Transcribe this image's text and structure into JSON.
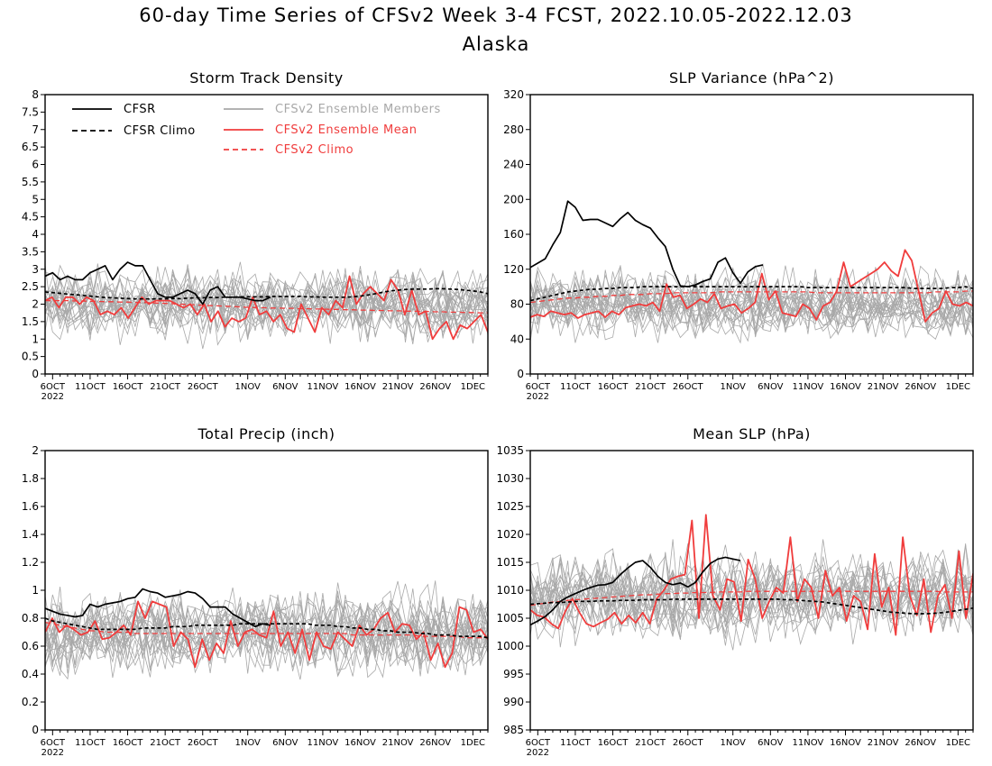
{
  "title": "60-day Time Series of CFSv2 Week 3-4 FCST, 2022.10.05-2022.12.03",
  "subtitle": "Alaska",
  "colors": {
    "cfsr": "#000000",
    "cfsr_climo": "#000000",
    "members": "#a8a8a8",
    "ens_mean": "#f03c3c",
    "cfsv2_climo": "#f03c3c"
  },
  "legend": {
    "cfsr": "CFSR",
    "cfsr_climo": "CFSR Climo",
    "members": "CFSv2 Ensemble Members",
    "ens_mean": "CFSv2 Ensemble Mean",
    "cfsv2_climo": "CFSv2 Climo"
  },
  "x_ticks": [
    "6OCT",
    "11OCT",
    "16OCT",
    "21OCT",
    "26OCT",
    "1NOV",
    "6NOV",
    "11NOV",
    "16NOV",
    "21NOV",
    "26NOV",
    "1DEC"
  ],
  "x_tick_days": [
    1,
    6,
    11,
    16,
    21,
    27,
    32,
    37,
    42,
    47,
    52,
    57
  ],
  "x_year": "2022",
  "chart_data": [
    {
      "type": "line",
      "title": "Storm Track Density",
      "ylim": [
        0,
        8
      ],
      "yticks": [
        "0",
        "0.5",
        "1",
        "1.5",
        "2",
        "2.5",
        "3",
        "3.5",
        "4",
        "4.5",
        "5",
        "5.5",
        "6",
        "6.5",
        "7",
        "7.5",
        "8"
      ],
      "legend_shown": true,
      "grid": false,
      "cfsr": [
        2.8,
        2.9,
        2.7,
        2.8,
        2.7,
        2.7,
        2.9,
        3.0,
        3.1,
        2.7,
        3.0,
        3.2,
        3.1,
        3.1,
        2.7,
        2.3,
        2.2,
        2.2,
        2.3,
        2.4,
        2.3,
        2.0,
        2.4,
        2.5,
        2.2,
        2.2,
        2.2,
        2.15,
        2.1,
        2.1,
        2.2
      ],
      "cfsr_climo": [
        2.35,
        2.33,
        2.31,
        2.29,
        2.27,
        2.25,
        2.23,
        2.21,
        2.19,
        2.18,
        2.17,
        2.16,
        2.15,
        2.15,
        2.15,
        2.15,
        2.15,
        2.16,
        2.16,
        2.17,
        2.18,
        2.18,
        2.19,
        2.19,
        2.2,
        2.2,
        2.21,
        2.21,
        2.21,
        2.21,
        2.22,
        2.22,
        2.22,
        2.22,
        2.22,
        2.21,
        2.21,
        2.2,
        2.2,
        2.2,
        2.2,
        2.21,
        2.23,
        2.26,
        2.3,
        2.34,
        2.38,
        2.4,
        2.42,
        2.43,
        2.43,
        2.43,
        2.44,
        2.44,
        2.43,
        2.42,
        2.4,
        2.38,
        2.35,
        2.3
      ],
      "cfsv2_climo": [
        2.1,
        2.1,
        2.1,
        2.1,
        2.09,
        2.09,
        2.08,
        2.08,
        2.07,
        2.07,
        2.06,
        2.06,
        2.05,
        2.05,
        2.04,
        2.03,
        2.02,
        2.01,
        2.0,
        1.99,
        1.98,
        1.97,
        1.96,
        1.95,
        1.94,
        1.93,
        1.92,
        1.91,
        1.9,
        1.9,
        1.89,
        1.89,
        1.88,
        1.88,
        1.87,
        1.87,
        1.86,
        1.86,
        1.85,
        1.85,
        1.84,
        1.84,
        1.83,
        1.83,
        1.82,
        1.82,
        1.81,
        1.81,
        1.8,
        1.8,
        1.79,
        1.79,
        1.78,
        1.78,
        1.77,
        1.77,
        1.76,
        1.76,
        1.75,
        1.75
      ],
      "ens_mean": [
        2.1,
        2.2,
        1.9,
        2.2,
        2.2,
        2.0,
        2.2,
        2.1,
        1.7,
        1.8,
        1.7,
        1.9,
        1.6,
        1.9,
        2.2,
        2.0,
        2.1,
        2.1,
        2.1,
        2.0,
        1.9,
        2.0,
        1.7,
        2.0,
        1.5,
        1.8,
        1.35,
        1.6,
        1.5,
        1.6,
        2.2,
        1.7,
        1.8,
        1.5,
        1.7,
        1.3,
        1.2,
        2.0,
        1.6,
        1.2,
        1.9,
        1.7,
        2.1,
        1.9,
        2.8,
        2.0,
        2.3,
        2.5,
        2.3,
        2.1,
        2.7,
        2.4,
        1.7,
        2.4,
        1.7,
        1.8,
        1.0,
        1.3,
        1.5,
        1.0,
        1.4,
        1.3,
        1.5,
        1.7,
        1.2
      ],
      "member_center": 2.0,
      "member_spread": 0.9,
      "member_floor": 0
    },
    {
      "type": "line",
      "title": "SLP Variance (hPa^2)",
      "ylim": [
        0,
        320
      ],
      "yticks": [
        "0",
        "40",
        "80",
        "120",
        "160",
        "200",
        "240",
        "280",
        "320"
      ],
      "legend_shown": false,
      "grid": false,
      "cfsr": [
        122,
        127,
        132,
        148,
        162,
        198,
        191,
        176,
        177,
        177,
        173,
        169,
        178,
        185,
        176,
        171,
        167,
        156,
        146,
        120,
        101,
        100,
        102,
        106,
        109,
        128,
        133,
        116,
        104,
        117,
        123,
        125
      ],
      "cfsr_climo": [
        84,
        86,
        88,
        90,
        92,
        94,
        95,
        96,
        97,
        97,
        98,
        98,
        99,
        99,
        99,
        100,
        100,
        100,
        100,
        100,
        100,
        100,
        100,
        100,
        100,
        100,
        100,
        100,
        100,
        100,
        100,
        100,
        100,
        100,
        100,
        100,
        100,
        99,
        99,
        99,
        99,
        99,
        99,
        99,
        99,
        99,
        99,
        99,
        99,
        99,
        99,
        98,
        98,
        98,
        98,
        98,
        99,
        99,
        100,
        98
      ],
      "cfsv2_climo": [
        82,
        83,
        84,
        85,
        86,
        87,
        87,
        88,
        88,
        89,
        89,
        90,
        90,
        91,
        91,
        91,
        92,
        92,
        92,
        93,
        93,
        93,
        93,
        93,
        93,
        94,
        94,
        94,
        94,
        94,
        94,
        94,
        94,
        94,
        94,
        94,
        94,
        94,
        93,
        93,
        93,
        93,
        93,
        93,
        93,
        93,
        93,
        93,
        93,
        93,
        93,
        93,
        93,
        93,
        94,
        94,
        94,
        94,
        95,
        95
      ],
      "ens_mean": [
        65,
        68,
        66,
        72,
        70,
        68,
        70,
        64,
        68,
        70,
        72,
        65,
        72,
        68,
        76,
        78,
        80,
        78,
        82,
        72,
        103,
        88,
        90,
        75,
        80,
        86,
        82,
        92,
        75,
        78,
        80,
        70,
        75,
        82,
        115,
        85,
        95,
        70,
        68,
        66,
        80,
        75,
        62,
        78,
        82,
        95,
        128,
        100,
        105,
        110,
        115,
        120,
        128,
        118,
        112,
        142,
        130,
        95,
        60,
        70,
        75,
        95,
        80,
        78,
        82,
        78
      ],
      "member_center": 80,
      "member_spread": 35,
      "member_floor": 20
    },
    {
      "type": "line",
      "title": "Total Precip (inch)",
      "ylim": [
        0,
        2
      ],
      "yticks": [
        "0",
        "0.2",
        "0.4",
        "0.6",
        "0.8",
        "1",
        "1.2",
        "1.4",
        "1.6",
        "1.8",
        "2"
      ],
      "legend_shown": false,
      "grid": false,
      "cfsr": [
        0.87,
        0.85,
        0.83,
        0.82,
        0.81,
        0.82,
        0.9,
        0.88,
        0.9,
        0.91,
        0.92,
        0.94,
        0.95,
        1.01,
        0.99,
        0.98,
        0.95,
        0.96,
        0.97,
        0.99,
        0.98,
        0.94,
        0.88,
        0.88,
        0.88,
        0.83,
        0.8,
        0.77,
        0.74,
        0.76,
        0.75
      ],
      "cfsr_climo": [
        0.8,
        0.78,
        0.77,
        0.76,
        0.75,
        0.74,
        0.73,
        0.72,
        0.72,
        0.72,
        0.72,
        0.72,
        0.72,
        0.73,
        0.73,
        0.73,
        0.73,
        0.74,
        0.74,
        0.74,
        0.75,
        0.75,
        0.75,
        0.75,
        0.75,
        0.75,
        0.76,
        0.76,
        0.76,
        0.76,
        0.76,
        0.76,
        0.76,
        0.76,
        0.76,
        0.76,
        0.75,
        0.75,
        0.75,
        0.74,
        0.74,
        0.73,
        0.73,
        0.72,
        0.72,
        0.71,
        0.71,
        0.7,
        0.7,
        0.7,
        0.69,
        0.69,
        0.68,
        0.68,
        0.68,
        0.67,
        0.67,
        0.67,
        0.67,
        0.66
      ],
      "cfsv2_climo": [
        0.77,
        0.76,
        0.75,
        0.74,
        0.73,
        0.72,
        0.71,
        0.71,
        0.7,
        0.7,
        0.7,
        0.7,
        0.69,
        0.69,
        0.69,
        0.69,
        0.69,
        0.69,
        0.69,
        0.69,
        0.69,
        0.69,
        0.69,
        0.69,
        0.69,
        0.69,
        0.69,
        0.69,
        0.69,
        0.69,
        0.69,
        0.69,
        0.69,
        0.69,
        0.69,
        0.69,
        0.69,
        0.69,
        0.69,
        0.69,
        0.69,
        0.68,
        0.68,
        0.68,
        0.68,
        0.68,
        0.68,
        0.68,
        0.68,
        0.68,
        0.67,
        0.67,
        0.67,
        0.67,
        0.67,
        0.67,
        0.66,
        0.66,
        0.66,
        0.66
      ],
      "ens_mean": [
        0.7,
        0.8,
        0.7,
        0.75,
        0.72,
        0.68,
        0.7,
        0.78,
        0.65,
        0.66,
        0.7,
        0.75,
        0.68,
        0.92,
        0.8,
        0.92,
        0.9,
        0.88,
        0.6,
        0.7,
        0.65,
        0.45,
        0.65,
        0.5,
        0.62,
        0.55,
        0.78,
        0.6,
        0.7,
        0.72,
        0.68,
        0.66,
        0.85,
        0.6,
        0.7,
        0.55,
        0.72,
        0.5,
        0.7,
        0.6,
        0.58,
        0.7,
        0.65,
        0.6,
        0.75,
        0.68,
        0.72,
        0.8,
        0.84,
        0.7,
        0.76,
        0.75,
        0.65,
        0.7,
        0.5,
        0.62,
        0.45,
        0.55,
        0.88,
        0.86,
        0.7,
        0.72,
        0.65
      ],
      "member_center": 0.7,
      "member_spread": 0.28,
      "member_floor": 0.1
    },
    {
      "type": "line",
      "title": "Mean SLP (hPa)",
      "ylim": [
        985,
        1035
      ],
      "yticks": [
        "985",
        "990",
        "995",
        "1000",
        "1005",
        "1010",
        "1015",
        "1020",
        "1025",
        "1030",
        "1035"
      ],
      "legend_shown": false,
      "grid": false,
      "cfsr": [
        1003.8,
        1004.5,
        1005.3,
        1006.5,
        1008.0,
        1008.8,
        1009.4,
        1010.0,
        1010.5,
        1010.9,
        1011.0,
        1011.4,
        1012.8,
        1014.0,
        1015.0,
        1015.3,
        1014.1,
        1012.5,
        1011.4,
        1011.0,
        1011.3,
        1010.6,
        1011.4,
        1013.3,
        1014.8,
        1015.6,
        1015.9,
        1015.6,
        1015.3
      ],
      "cfsr_climo": [
        1007.5,
        1007.6,
        1007.7,
        1007.8,
        1007.8,
        1007.9,
        1008.0,
        1008.0,
        1008.0,
        1008.1,
        1008.1,
        1008.1,
        1008.2,
        1008.2,
        1008.2,
        1008.3,
        1008.3,
        1008.3,
        1008.3,
        1008.4,
        1008.4,
        1008.4,
        1008.4,
        1008.4,
        1008.4,
        1008.4,
        1008.4,
        1008.4,
        1008.4,
        1008.4,
        1008.4,
        1008.4,
        1008.4,
        1008.4,
        1008.3,
        1008.3,
        1008.2,
        1008.1,
        1008.0,
        1007.9,
        1007.7,
        1007.5,
        1007.3,
        1007.1,
        1006.9,
        1006.7,
        1006.5,
        1006.3,
        1006.1,
        1006.0,
        1005.9,
        1005.8,
        1005.8,
        1005.8,
        1005.9,
        1006.0,
        1006.2,
        1006.4,
        1006.6,
        1006.8
      ],
      "cfsv2_climo": [
        1007.3,
        1007.5,
        1007.7,
        1007.9,
        1008.0,
        1008.2,
        1008.3,
        1008.4,
        1008.5,
        1008.6,
        1008.7,
        1008.8,
        1008.9,
        1009.0,
        1009.1,
        1009.2,
        1009.2,
        1009.3,
        1009.4,
        1009.4,
        1009.5,
        1009.5,
        1009.6,
        1009.6,
        1009.6,
        1009.7,
        1009.7,
        1009.7,
        1009.7,
        1009.8,
        1009.8,
        1009.8,
        1009.8,
        1009.8,
        1009.8,
        1009.8,
        1009.8,
        1009.8,
        1009.8,
        1009.8,
        1009.8,
        1009.8,
        1009.8,
        1009.8,
        1009.8,
        1009.8,
        1009.8,
        1009.8,
        1009.8,
        1009.8,
        1009.8,
        1009.8,
        1009.8,
        1009.8,
        1009.8,
        1009.7,
        1009.7,
        1009.7,
        1009.7,
        1009.7
      ],
      "ens_mean": [
        1006.5,
        1005.5,
        1005.2,
        1004.0,
        1003.2,
        1006.3,
        1008.5,
        1006.0,
        1004.0,
        1003.5,
        1004.2,
        1004.8,
        1006.0,
        1004.0,
        1005.5,
        1004.2,
        1006.0,
        1004.0,
        1008.5,
        1010.0,
        1012.0,
        1012.5,
        1012.8,
        1022.5,
        1005.0,
        1023.5,
        1009.0,
        1006.5,
        1012.0,
        1011.5,
        1004.5,
        1015.5,
        1012.0,
        1005.0,
        1008.0,
        1010.5,
        1009.5,
        1019.5,
        1008.0,
        1012.0,
        1010.5,
        1005.0,
        1013.5,
        1009.0,
        1010.5,
        1004.5,
        1009.0,
        1008.0,
        1003.0,
        1016.5,
        1007.0,
        1010.5,
        1002.0,
        1019.5,
        1009.0,
        1005.5,
        1012.0,
        1002.5,
        1009.0,
        1011.0,
        1005.0,
        1017.0,
        1005.0,
        1013.0
      ],
      "member_center": 1009.0,
      "member_spread": 7.0,
      "member_floor": 985
    }
  ]
}
